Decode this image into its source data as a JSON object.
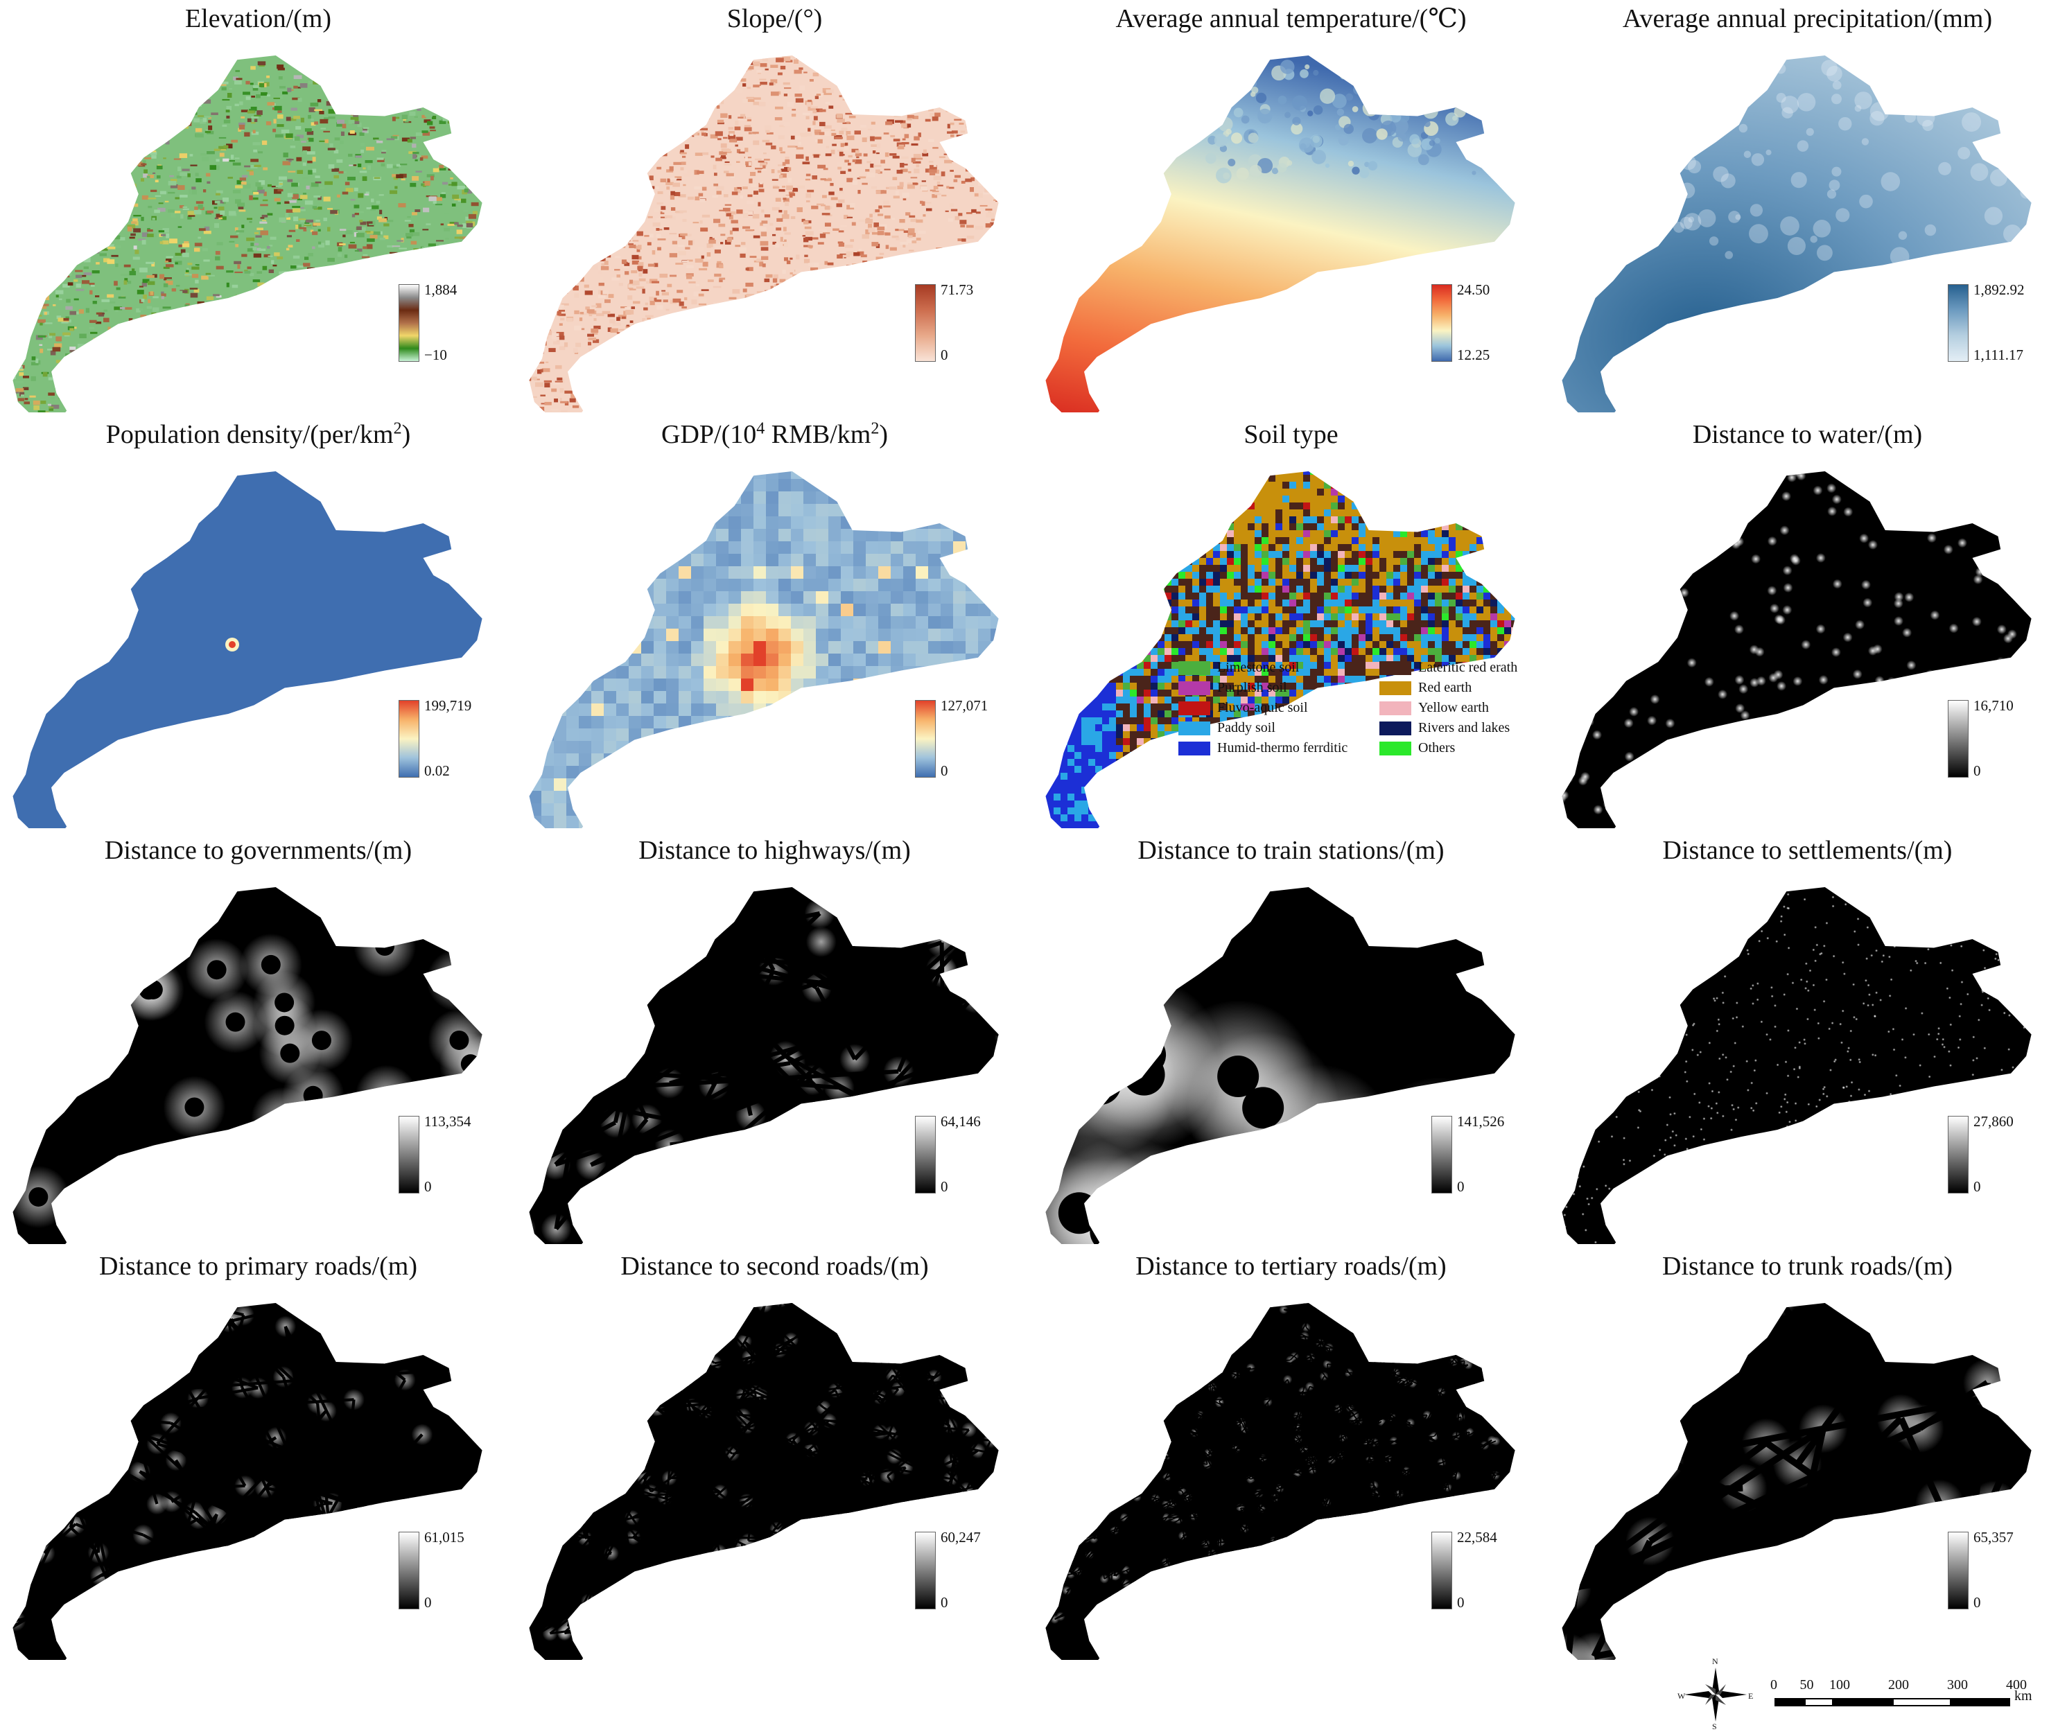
{
  "panels": [
    {
      "title": "Elevation/(m)",
      "max": "1,884",
      "min": "−10",
      "ramp": [
        "#c8f2d6",
        "#2f8a1c",
        "#f0d66a",
        "#b0704a",
        "#6b2b12",
        "#8a8a8a",
        "#ffffff"
      ],
      "pattern": "terrain"
    },
    {
      "title": "Slope/(°)",
      "max": "71.73",
      "min": "0",
      "ramp": [
        "#f9e3d7",
        "#e8a98a",
        "#cd6e4f",
        "#a63a23"
      ],
      "pattern": "noise"
    },
    {
      "title": "Average annual temperature/(℃)",
      "max": "24.50",
      "min": "12.25",
      "ramp": [
        "#3f69ad",
        "#9bc4dc",
        "#fbf3c2",
        "#f7b26a",
        "#f26b3c",
        "#d92b20"
      ],
      "pattern": "temperature"
    },
    {
      "title": "Average annual precipitation/(mm)",
      "max": "1,892.92",
      "min": "1,111.17",
      "ramp": [
        "#e4eef5",
        "#b5cfe0",
        "#6d9bc0",
        "#26608f"
      ],
      "pattern": "smooth"
    },
    {
      "title": "Population density/(per/km",
      "sup": "2",
      "suffix": ")",
      "max": "199,719",
      "min": "0.02",
      "ramp": [
        "#3f6eb0",
        "#9ec2dc",
        "#fbf3c2",
        "#f7b26a",
        "#e2412a"
      ],
      "pattern": "hotspot"
    },
    {
      "title": "GDP/(10",
      "sup": "4",
      "suffix": " RMB/km",
      "sup2": "2",
      "suffix2": ")",
      "max": "127,071",
      "min": "0",
      "ramp": [
        "#3f6eb0",
        "#9ec2dc",
        "#fbf3c2",
        "#f7b26a",
        "#e2412a"
      ],
      "pattern": "blocky"
    },
    {
      "title": "Soil type",
      "pattern": "soil"
    },
    {
      "title": "Distance to water/(m)",
      "max": "16,710",
      "min": "0",
      "ramp": [
        "#000000",
        "#ffffff"
      ],
      "pattern": "dots"
    },
    {
      "title": "Distance to governments/(m)",
      "max": "113,354",
      "min": "0",
      "ramp": [
        "#000000",
        "#ffffff"
      ],
      "pattern": "voronoi"
    },
    {
      "title": "Distance to highways/(m)",
      "max": "64,146",
      "min": "0",
      "ramp": [
        "#000000",
        "#ffffff"
      ],
      "pattern": "network"
    },
    {
      "title": "Distance to train stations/(m)",
      "max": "141,526",
      "min": "0",
      "ramp": [
        "#000000",
        "#ffffff"
      ],
      "pattern": "voronoi2"
    },
    {
      "title": "Distance to settlements/(m)",
      "max": "27,860",
      "min": "0",
      "ramp": [
        "#000000",
        "#ffffff"
      ],
      "pattern": "fine"
    },
    {
      "title": "Distance to primary roads/(m)",
      "max": "61,015",
      "min": "0",
      "ramp": [
        "#000000",
        "#ffffff"
      ],
      "pattern": "network2"
    },
    {
      "title": "Distance to second roads/(m)",
      "max": "60,247",
      "min": "0",
      "ramp": [
        "#000000",
        "#ffffff"
      ],
      "pattern": "network3"
    },
    {
      "title": "Distance to tertiary roads/(m)",
      "max": "22,584",
      "min": "0",
      "ramp": [
        "#000000",
        "#ffffff"
      ],
      "pattern": "network4"
    },
    {
      "title": "Distance to trunk roads/(m)",
      "max": "65,357",
      "min": "0",
      "ramp": [
        "#000000",
        "#ffffff"
      ],
      "pattern": "network5"
    }
  ],
  "soil_legend": [
    {
      "label": "Limestone soil",
      "color": "#4caf3e"
    },
    {
      "label": "Purplish soil",
      "color": "#b43aa8"
    },
    {
      "label": "Fluvo-aquic soil",
      "color": "#c21414"
    },
    {
      "label": "Paddy soil",
      "color": "#2aa7e6"
    },
    {
      "label": "Humid-thermo ferrditic",
      "color": "#1c2fd6"
    },
    {
      "label": "Lateritic red erath",
      "color": "#4a241a"
    },
    {
      "label": "Red earth",
      "color": "#c8900c"
    },
    {
      "label": "Yellow earth",
      "color": "#f2b4bc"
    },
    {
      "label": "Rivers and lakes",
      "color": "#0d1a5c"
    },
    {
      "label": "Others",
      "color": "#2be82b"
    }
  ],
  "scale_bar": {
    "ticks": [
      "0",
      "50",
      "100",
      "200",
      "300",
      "400"
    ],
    "unit": "km"
  },
  "compass": {
    "n": "N",
    "s": "S",
    "e": "E",
    "w": "W"
  }
}
